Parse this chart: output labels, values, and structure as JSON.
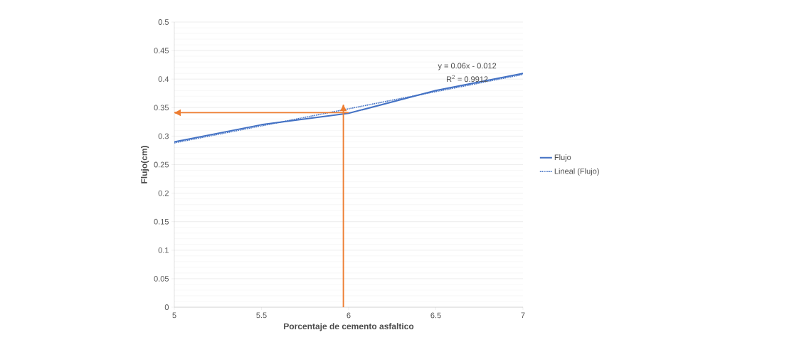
{
  "chart_data": {
    "type": "line",
    "xlabel": "Porcentaje de cemento asfaltico",
    "ylabel": "Flujo(cm)",
    "x": [
      5,
      5.5,
      6,
      6.5,
      7
    ],
    "series": [
      {
        "name": "Flujo",
        "color": "#4472c4",
        "values": [
          0.29,
          0.32,
          0.34,
          0.38,
          0.41
        ],
        "line_style": "solid"
      },
      {
        "name": "Lineal (Flujo)",
        "color": "#4472c4",
        "x": [
          5,
          7
        ],
        "values": [
          0.288,
          0.408
        ],
        "line_style": "dotted"
      },
      {
        "color": "#ed7d31",
        "x": [
          5.97,
          5.97
        ],
        "values": [
          0,
          0.355
        ],
        "line_style": "solid"
      },
      {
        "color": "#ed7d31",
        "x": [
          6,
          5
        ],
        "values": [
          0.341,
          0.341
        ],
        "line_style": "solid"
      }
    ],
    "annotations": [
      "y = 0.06x - 0.012",
      "R$^{2}$ = 0.9912"
    ],
    "xlim": [
      5,
      7
    ],
    "ylim": [
      0,
      0.5
    ],
    "xticks": [
      5,
      5.5,
      6,
      6.5,
      7
    ],
    "yticks": [
      0,
      0.05,
      0.1,
      0.15,
      0.2,
      0.25,
      0.3,
      0.35,
      0.4,
      0.45,
      0.5
    ],
    "grid": "y",
    "legend": "right",
    "marker": "none"
  }
}
